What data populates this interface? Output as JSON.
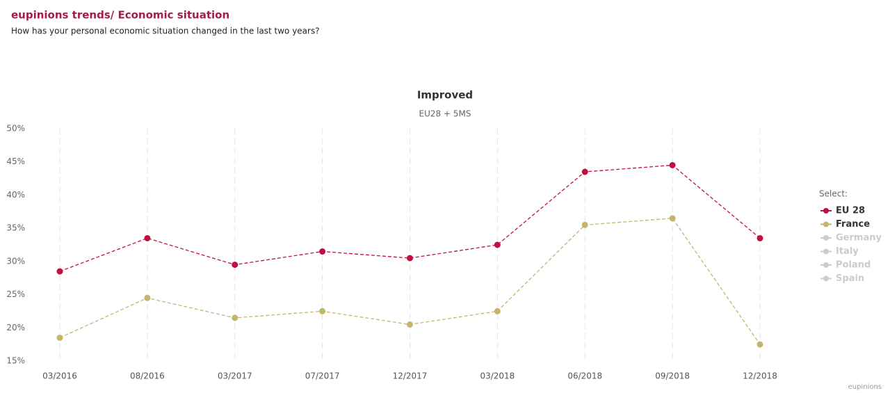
{
  "header": {
    "title": "eupinions trends/ Economic situation",
    "subtitle": "How has your personal economic situation changed in the last two years?"
  },
  "chart_data": {
    "type": "line",
    "title": "Improved",
    "subtitle": "EU28 + 5MS",
    "categories": [
      "03/2016",
      "08/2016",
      "03/2017",
      "07/2017",
      "12/2017",
      "03/2018",
      "06/2018",
      "09/2018",
      "12/2018"
    ],
    "series": [
      {
        "name": "EU 28",
        "color": "#c0103f",
        "values": [
          28.5,
          33.5,
          29.5,
          31.5,
          30.5,
          32.5,
          43.5,
          44.5,
          33.5
        ]
      },
      {
        "name": "France",
        "color": "#c4b46e",
        "values": [
          18.5,
          24.5,
          21.5,
          22.5,
          20.5,
          22.5,
          35.5,
          36.5,
          17.5
        ]
      }
    ],
    "hidden_series": [
      {
        "name": "Germany",
        "color": "#cccccc"
      },
      {
        "name": "Italy",
        "color": "#cccccc"
      },
      {
        "name": "Poland",
        "color": "#cccccc"
      },
      {
        "name": "Spain",
        "color": "#cccccc"
      }
    ],
    "ylim": [
      15,
      50
    ],
    "yticks": [
      {
        "value": 15,
        "label": "15%"
      },
      {
        "value": 20,
        "label": "20%"
      },
      {
        "value": 25,
        "label": "25%"
      },
      {
        "value": 30,
        "label": "30%"
      },
      {
        "value": 35,
        "label": "35%"
      },
      {
        "value": 40,
        "label": "40%"
      },
      {
        "value": 45,
        "label": "45%"
      },
      {
        "value": 50,
        "label": "50%"
      }
    ],
    "grid": "x",
    "line_style": "dashed",
    "legend": {
      "title": "Select:",
      "position": "right"
    },
    "credits": "eupinions"
  }
}
